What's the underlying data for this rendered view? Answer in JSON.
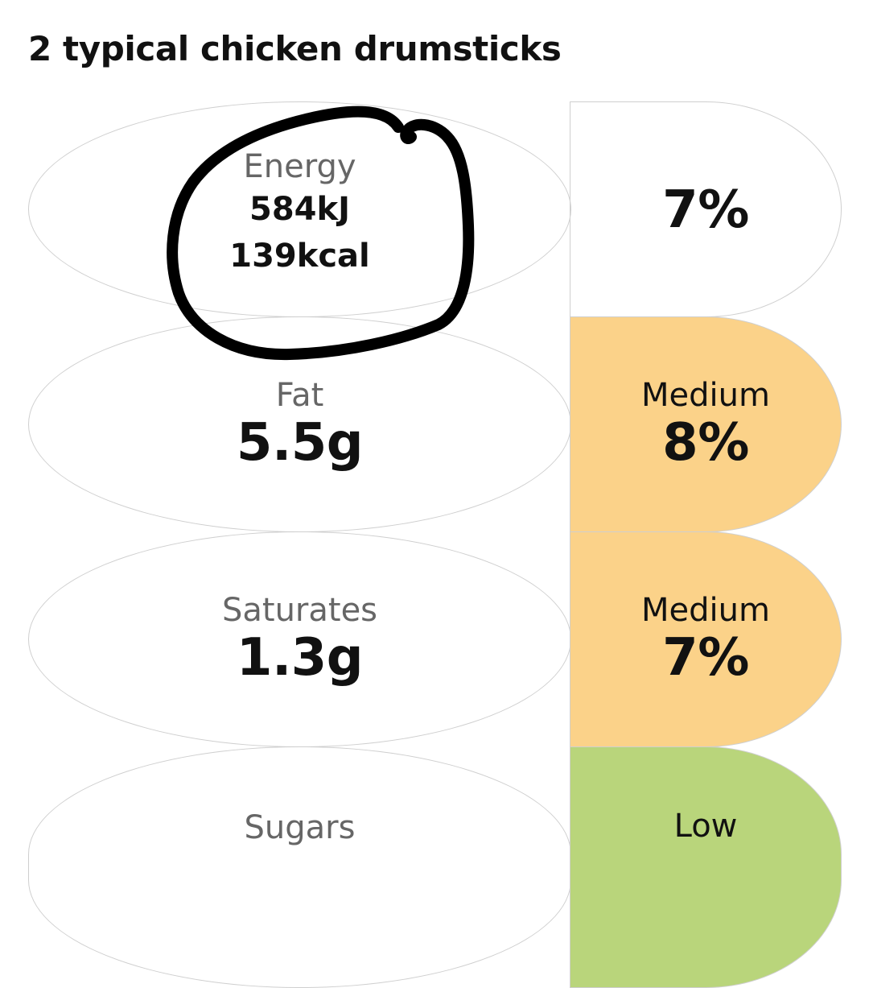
{
  "title": "2 typical chicken drumsticks",
  "colors": {
    "medium": "#fbd289",
    "low": "#b9d57b",
    "border": "#cfcfcf",
    "label": "#666666",
    "annotation_ink": "#000000"
  },
  "rows": [
    {
      "name": "Energy",
      "kj": "584kJ",
      "kcal": "139kcal",
      "percent": "7%"
    },
    {
      "name": "Fat",
      "value": "5.5g",
      "level": "Medium",
      "percent": "8%"
    },
    {
      "name": "Saturates",
      "value": "1.3g",
      "level": "Medium",
      "percent": "7%"
    },
    {
      "name": "Sugars",
      "level": "Low"
    }
  ]
}
